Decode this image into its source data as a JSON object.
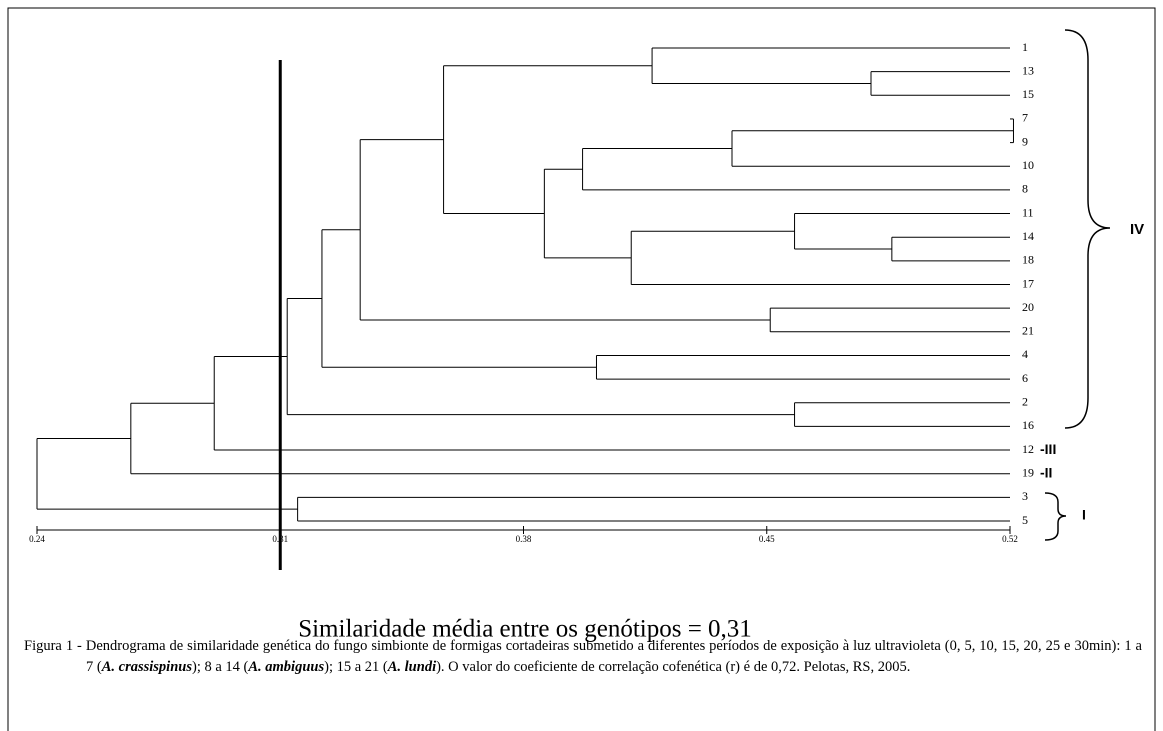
{
  "chart_data": {
    "type": "dendrogram",
    "xlim": [
      0.24,
      0.52
    ],
    "xticks": [
      0.24,
      0.31,
      0.38,
      0.45,
      0.52
    ],
    "cutoff": 0.31,
    "tree": {
      "height": 0.24,
      "children": [
        {
          "height": 0.267,
          "children": [
            {
              "height": 0.291,
              "children": [
                {
                  "height": 0.312,
                  "children": [
                    {
                      "height": 0.322,
                      "children": [
                        {
                          "height": 0.333,
                          "children": [
                            {
                              "height": 0.357,
                              "children": [
                                {
                                  "height": 0.417,
                                  "children": [
                                    {
                                      "label": "1"
                                    },
                                    {
                                      "height": 0.48,
                                      "children": [
                                        {
                                          "label": "13"
                                        },
                                        {
                                          "label": "15"
                                        }
                                      ]
                                    }
                                  ]
                                },
                                {
                                  "height": 0.386,
                                  "children": [
                                    {
                                      "height": 0.397,
                                      "children": [
                                        {
                                          "height": 0.44,
                                          "children": [
                                            {
                                              "height": 0.521,
                                              "children": [
                                                {
                                                  "label": "7"
                                                },
                                                {
                                                  "label": "9"
                                                }
                                              ]
                                            },
                                            {
                                              "label": "10"
                                            }
                                          ]
                                        },
                                        {
                                          "label": "8"
                                        }
                                      ]
                                    },
                                    {
                                      "height": 0.411,
                                      "children": [
                                        {
                                          "height": 0.458,
                                          "children": [
                                            {
                                              "label": "11"
                                            },
                                            {
                                              "height": 0.486,
                                              "children": [
                                                {
                                                  "label": "14"
                                                },
                                                {
                                                  "label": "18"
                                                }
                                              ]
                                            }
                                          ]
                                        },
                                        {
                                          "label": "17"
                                        }
                                      ]
                                    }
                                  ]
                                }
                              ]
                            },
                            {
                              "height": 0.451,
                              "children": [
                                {
                                  "label": "20"
                                },
                                {
                                  "label": "21"
                                }
                              ]
                            }
                          ]
                        },
                        {
                          "height": 0.401,
                          "children": [
                            {
                              "label": "4"
                            },
                            {
                              "label": "6"
                            }
                          ]
                        }
                      ]
                    },
                    {
                      "height": 0.458,
                      "children": [
                        {
                          "label": "2"
                        },
                        {
                          "label": "16"
                        }
                      ]
                    }
                  ]
                },
                {
                  "label": "12"
                }
              ]
            },
            {
              "label": "19"
            }
          ]
        },
        {
          "height": 0.315,
          "children": [
            {
              "label": "3"
            },
            {
              "label": "5"
            }
          ]
        }
      ]
    },
    "groups": [
      "IV",
      "-III",
      "-II",
      "I"
    ],
    "annotation": "Similaridade média entre os genótipos = 0,31"
  },
  "caption": [
    {
      "text": "Figura 1 - Dendrograma de similaridade genética do fungo simbionte de formigas cortadeiras submetido a diferentes períodos de exposição à luz ultravioleta (0, 5, 10, 15, 20, 25 e 30min): 1 a 7 ("
    },
    {
      "text": "A. crassispinus",
      "bold": true
    },
    {
      "text": ");  8 a 14 ("
    },
    {
      "text": "A. ambiguus",
      "bold": true
    },
    {
      "text": "); 15 a 21 ("
    },
    {
      "text": "A. lundi",
      "bold": true
    },
    {
      "text": "). O valor do coeficiente de correlação cofenética (r) é de 0,72. Pelotas, RS, 2005."
    }
  ]
}
